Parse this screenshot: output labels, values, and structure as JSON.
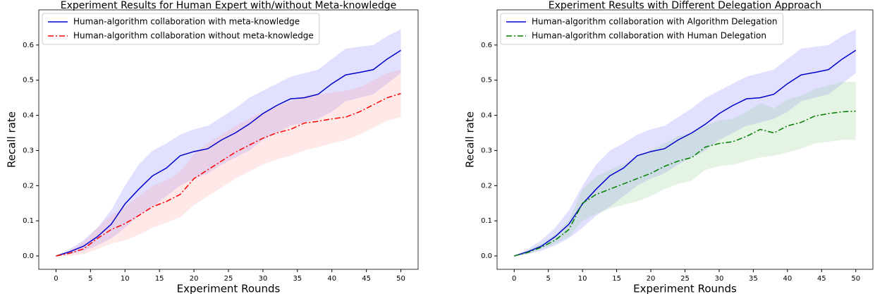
{
  "chart_data": [
    {
      "type": "line",
      "title": "Experiment Results for Human Expert with/without Meta-knowledge",
      "xlabel": "Experiment Rounds",
      "ylabel": "Recall rate",
      "x": [
        0,
        2,
        4,
        6,
        8,
        10,
        12,
        14,
        16,
        18,
        20,
        22,
        24,
        26,
        28,
        30,
        32,
        34,
        36,
        38,
        40,
        42,
        44,
        46,
        48,
        50
      ],
      "series": [
        {
          "name": "Human-algorithm collaboration with meta-knowledge",
          "color": "#0000cc",
          "band_color": "#6b6bff",
          "linestyle": "solid",
          "values": [
            0,
            0.012,
            0.028,
            0.055,
            0.09,
            0.148,
            0.19,
            0.228,
            0.25,
            0.285,
            0.297,
            0.305,
            0.33,
            0.35,
            0.375,
            0.405,
            0.428,
            0.447,
            0.45,
            0.46,
            0.49,
            0.515,
            0.522,
            0.53,
            0.56,
            0.585
          ],
          "lower": [
            0,
            0.005,
            0.015,
            0.03,
            0.05,
            0.08,
            0.115,
            0.14,
            0.17,
            0.2,
            0.22,
            0.235,
            0.26,
            0.28,
            0.3,
            0.33,
            0.35,
            0.37,
            0.38,
            0.39,
            0.41,
            0.44,
            0.45,
            0.46,
            0.49,
            0.52
          ],
          "upper": [
            0,
            0.02,
            0.045,
            0.08,
            0.13,
            0.2,
            0.26,
            0.3,
            0.32,
            0.345,
            0.36,
            0.37,
            0.395,
            0.42,
            0.45,
            0.47,
            0.49,
            0.51,
            0.52,
            0.53,
            0.56,
            0.59,
            0.595,
            0.6,
            0.625,
            0.645
          ]
        },
        {
          "name": "Human-algorithm collaboration without meta-knowledge",
          "color": "#ff0000",
          "band_color": "#ff8a8a",
          "linestyle": "dashdot",
          "values": [
            0,
            0.008,
            0.02,
            0.05,
            0.075,
            0.092,
            0.115,
            0.14,
            0.155,
            0.175,
            0.22,
            0.245,
            0.27,
            0.295,
            0.315,
            0.335,
            0.35,
            0.36,
            0.378,
            0.383,
            0.39,
            0.395,
            0.41,
            0.43,
            0.45,
            0.462
          ],
          "lower": [
            0,
            0,
            0.005,
            0.02,
            0.035,
            0.045,
            0.06,
            0.08,
            0.095,
            0.11,
            0.145,
            0.17,
            0.195,
            0.22,
            0.24,
            0.26,
            0.275,
            0.285,
            0.3,
            0.31,
            0.32,
            0.33,
            0.345,
            0.365,
            0.385,
            0.395
          ],
          "upper": [
            0,
            0.015,
            0.04,
            0.08,
            0.115,
            0.14,
            0.17,
            0.2,
            0.215,
            0.24,
            0.29,
            0.32,
            0.345,
            0.37,
            0.39,
            0.41,
            0.425,
            0.44,
            0.455,
            0.46,
            0.465,
            0.47,
            0.48,
            0.5,
            0.52,
            0.53
          ]
        }
      ],
      "xlim": [
        -2.5,
        52.5
      ],
      "ylim": [
        -0.038,
        0.7
      ],
      "xticks": [
        0,
        5,
        10,
        15,
        20,
        25,
        30,
        35,
        40,
        45,
        50
      ],
      "yticks": [
        {
          "value": 0,
          "label": "0.0"
        },
        0.1,
        0.2,
        0.3,
        0.4,
        0.5,
        0.6
      ],
      "legend": "upper left"
    },
    {
      "type": "line",
      "title": "Experiment Results with Different Delegation Approach",
      "xlabel": "Experiment Rounds",
      "ylabel": "Recall rate",
      "x": [
        0,
        2,
        4,
        6,
        8,
        10,
        12,
        14,
        16,
        18,
        20,
        22,
        24,
        26,
        28,
        30,
        32,
        34,
        36,
        38,
        40,
        42,
        44,
        46,
        48,
        50
      ],
      "series": [
        {
          "name": "Human-algorithm collaboration with Algorithm Delegation",
          "color": "#0000cc",
          "band_color": "#6b6bff",
          "linestyle": "solid",
          "values": [
            0,
            0.012,
            0.028,
            0.055,
            0.09,
            0.148,
            0.19,
            0.228,
            0.25,
            0.285,
            0.297,
            0.305,
            0.33,
            0.35,
            0.375,
            0.405,
            0.428,
            0.447,
            0.45,
            0.46,
            0.49,
            0.515,
            0.522,
            0.53,
            0.56,
            0.585
          ],
          "lower": [
            0,
            0.005,
            0.015,
            0.03,
            0.05,
            0.08,
            0.115,
            0.14,
            0.17,
            0.2,
            0.22,
            0.235,
            0.26,
            0.28,
            0.3,
            0.33,
            0.35,
            0.37,
            0.38,
            0.39,
            0.41,
            0.44,
            0.45,
            0.46,
            0.49,
            0.52
          ],
          "upper": [
            0,
            0.02,
            0.045,
            0.08,
            0.13,
            0.2,
            0.26,
            0.3,
            0.32,
            0.345,
            0.36,
            0.37,
            0.395,
            0.42,
            0.45,
            0.47,
            0.49,
            0.51,
            0.52,
            0.53,
            0.56,
            0.59,
            0.595,
            0.6,
            0.625,
            0.645
          ]
        },
        {
          "name": "Human-algorithm collaboration with Human Delegation",
          "color": "#008000",
          "band_color": "#7fc27f",
          "linestyle": "dashdot",
          "values": [
            0,
            0.01,
            0.025,
            0.045,
            0.075,
            0.15,
            0.175,
            0.19,
            0.205,
            0.22,
            0.235,
            0.255,
            0.27,
            0.28,
            0.31,
            0.32,
            0.325,
            0.34,
            0.36,
            0.35,
            0.37,
            0.38,
            0.398,
            0.405,
            0.41,
            0.412
          ],
          "lower": [
            0,
            0.005,
            0.02,
            0.035,
            0.055,
            0.1,
            0.12,
            0.135,
            0.145,
            0.155,
            0.17,
            0.19,
            0.205,
            0.215,
            0.245,
            0.255,
            0.26,
            0.27,
            0.28,
            0.285,
            0.295,
            0.305,
            0.32,
            0.325,
            0.33,
            0.33
          ],
          "upper": [
            0,
            0.015,
            0.035,
            0.06,
            0.1,
            0.19,
            0.225,
            0.245,
            0.26,
            0.28,
            0.3,
            0.32,
            0.34,
            0.35,
            0.37,
            0.385,
            0.39,
            0.41,
            0.435,
            0.42,
            0.445,
            0.455,
            0.475,
            0.485,
            0.495,
            0.495
          ]
        }
      ],
      "xlim": [
        -2.5,
        52.5
      ],
      "ylim": [
        -0.038,
        0.7
      ],
      "xticks": [
        0,
        5,
        10,
        15,
        20,
        25,
        30,
        35,
        40,
        45,
        50
      ],
      "yticks": [
        {
          "value": 0,
          "label": "0.0"
        },
        0.1,
        0.2,
        0.3,
        0.4,
        0.5,
        0.6
      ],
      "legend": "upper left"
    }
  ]
}
